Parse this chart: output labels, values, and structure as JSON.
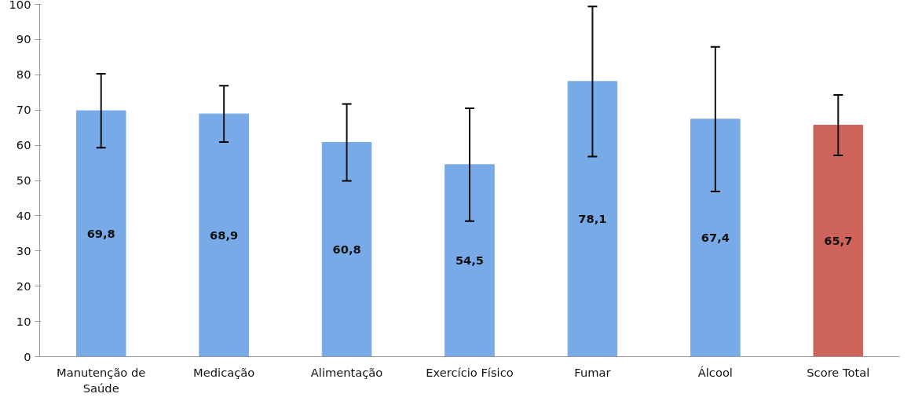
{
  "chart_data": {
    "type": "bar",
    "categories": [
      "Manutenção de Saúde",
      "Medicação",
      "Alimentação",
      "Exercício Físico",
      "Fumar",
      "Álcool",
      "Score Total"
    ],
    "values": [
      69.8,
      68.9,
      60.8,
      54.5,
      78.1,
      67.4,
      65.7
    ],
    "colors": [
      "#78aae8",
      "#78aae8",
      "#78aae8",
      "#78aae8",
      "#78aae8",
      "#78aae8",
      "#cd645c"
    ],
    "errors": [
      10.5,
      8,
      10.9,
      16,
      21.3,
      20.5,
      8.6
    ],
    "value_labels": [
      "69,8",
      "68,9",
      "60,8",
      "54,5",
      "78,1",
      "67,4",
      "65,7"
    ],
    "ylim": [
      0,
      100
    ],
    "yticks": [
      0,
      10,
      20,
      30,
      40,
      50,
      60,
      70,
      80,
      90,
      100
    ],
    "grid": false
  }
}
